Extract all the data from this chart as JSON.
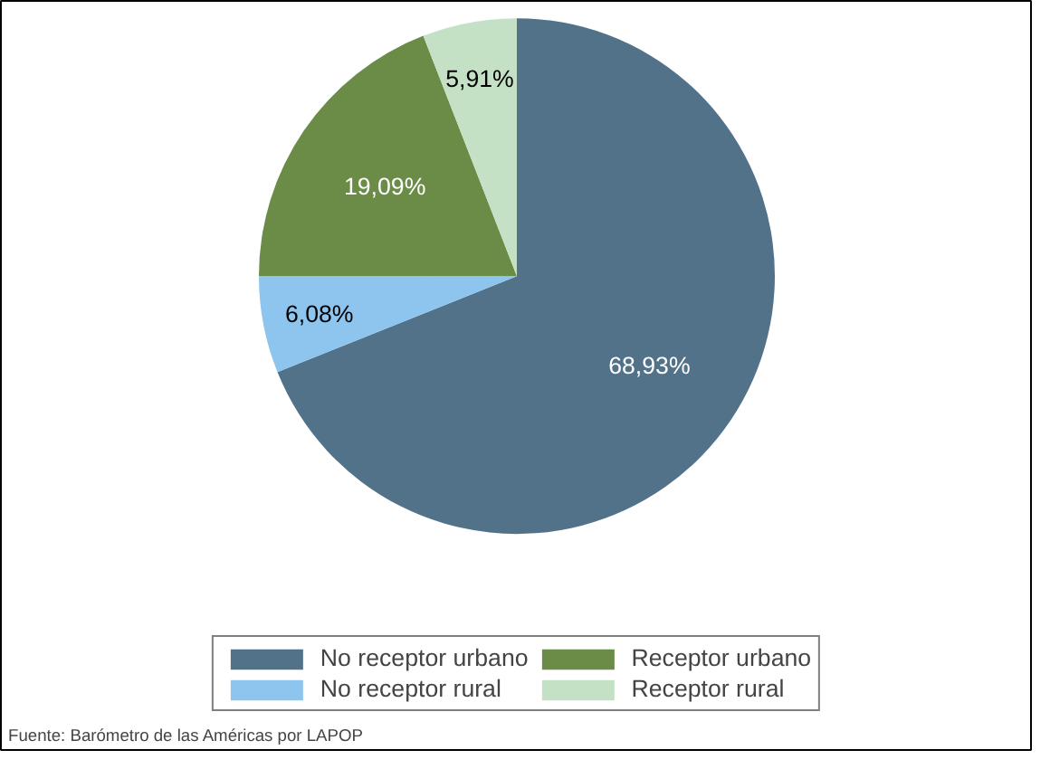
{
  "chart_data": {
    "type": "pie",
    "categories": [
      "No receptor urbano",
      "No receptor rural",
      "Receptor urbano",
      "Receptor rural"
    ],
    "values": [
      68.93,
      6.08,
      19.09,
      5.91
    ],
    "colors": [
      "#52728a",
      "#8ec5ee",
      "#6a8c47",
      "#c5e1c5"
    ],
    "value_labels": [
      "68,93%",
      "6,08%",
      "19,09%",
      "5,91%"
    ],
    "legend": "bottom",
    "annotations": [
      "Fuente: Barómetro de las Américas por LAPOP"
    ]
  }
}
